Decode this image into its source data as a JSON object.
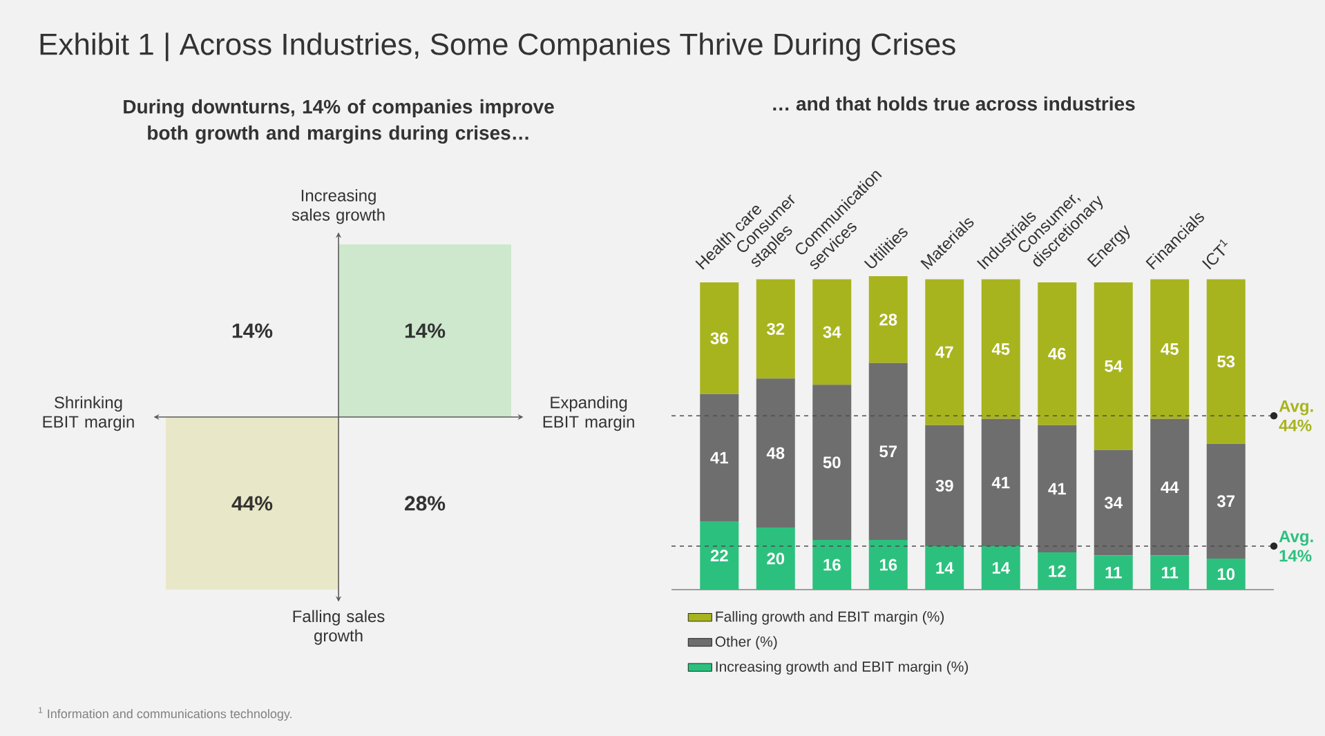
{
  "chart_data": [
    {
      "type": "other",
      "title": "Exhibit 1 | Across Industries, Some Companies Thrive During Crises",
      "subtitle": "During downturns, 14% of companies improve both growth and margins during crises…",
      "categories": [
        "Shrinking EBIT margin",
        "Expanding EBIT margin"
      ],
      "y_categories": [
        "Increasing sales growth",
        "Falling sales growth"
      ],
      "cell_labels": [
        [
          "14%",
          "14%"
        ],
        [
          "44%",
          "28%"
        ]
      ],
      "colors": [
        [
          null,
          "#cde8cc"
        ],
        [
          "#e8e8c8",
          null
        ]
      ],
      "annotations": [
        "$^{1}$ Information and communications technology."
      ]
    },
    {
      "type": "bar",
      "title": "… and that holds true across industries",
      "stacked": true,
      "data_labels": true,
      "legend": "bottom",
      "tick_labels": "x",
      "categories": [
        "Health care",
        "Consumer staples",
        "Communication services",
        "Utilities",
        "Materials",
        "Industrials",
        "Consumer, discretionary",
        "Energy",
        "Financials",
        "ICT$^{1}$"
      ],
      "series": [
        {
          "name": "Increasing growth and EBIT margin (%)",
          "color": "#2cc07e",
          "values": [
            22,
            20,
            16,
            16,
            14,
            14,
            12,
            11,
            11,
            10
          ]
        },
        {
          "name": "Other (%)",
          "color": "#6e6e6e",
          "values": [
            41,
            48,
            50,
            57,
            39,
            41,
            41,
            34,
            44,
            37
          ]
        },
        {
          "name": "Falling growth and EBIT margin (%)",
          "color": "#a8b41e",
          "values": [
            36,
            32,
            34,
            28,
            47,
            45,
            46,
            54,
            45,
            53
          ]
        }
      ],
      "ref_lines": [
        {
          "axis": "y",
          "value": 56,
          "label": "Avg. 44%",
          "line_style": "dashed"
        },
        {
          "axis": "y",
          "value": 14,
          "label": "Avg. 14%",
          "line_style": "dashed"
        }
      ]
    }
  ]
}
